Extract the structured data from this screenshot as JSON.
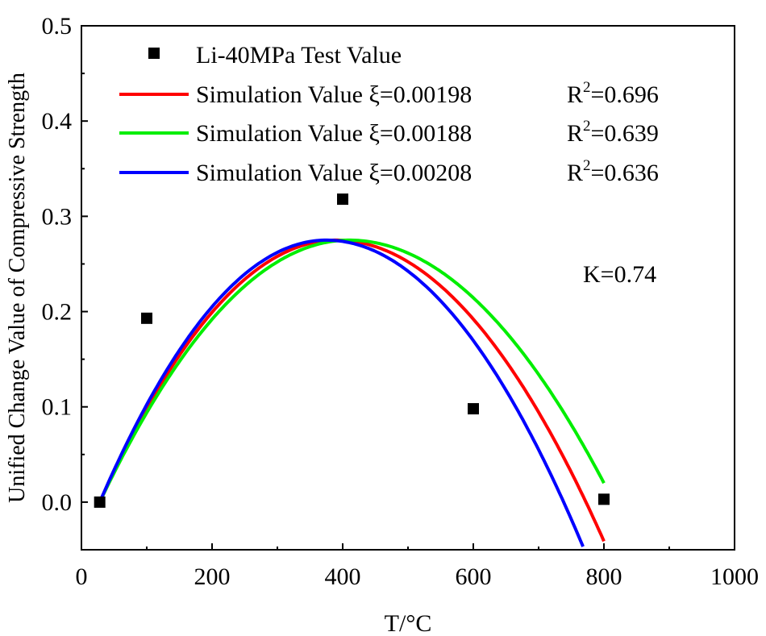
{
  "chart_data": {
    "type": "scatter",
    "title": "",
    "xlabel": "T/°C",
    "ylabel": "Unified Change Value of Compressive Strength",
    "xlim": [
      0,
      1000
    ],
    "ylim": [
      -0.05,
      0.5
    ],
    "xticks": [
      0,
      200,
      400,
      600,
      800,
      1000
    ],
    "xtick_labels": [
      "0",
      "200",
      "400",
      "600",
      "800",
      "1000"
    ],
    "yticks": [
      0.0,
      0.1,
      0.2,
      0.3,
      0.4,
      0.5
    ],
    "ytick_labels": [
      "0.0",
      "0.1",
      "0.2",
      "0.3",
      "0.4",
      "0.5"
    ],
    "grid": false,
    "legend_position": "top",
    "annotation": "K=0.74",
    "test_points": {
      "name": "Li-40MPa Test Value",
      "color": "#000000",
      "x": [
        28,
        100,
        400,
        600,
        800
      ],
      "y": [
        0.0,
        0.193,
        0.318,
        0.098,
        0.003
      ]
    },
    "series": [
      {
        "name": "Simulation Value ξ=0.00198",
        "r2_label": "R",
        "r2_sup": "2",
        "r2_value": "=0.696",
        "color": "#ff0000",
        "peak_x": 390,
        "peak_y": 0.275,
        "x_start": 28,
        "x_end": 800,
        "x": [
          28,
          100,
          200,
          300,
          390,
          500,
          600,
          700,
          800
        ],
        "y": [
          0.0,
          0.107,
          0.201,
          0.259,
          0.275,
          0.245,
          0.179,
          0.078,
          -0.041
        ]
      },
      {
        "name": "Simulation Value ξ=0.00188",
        "r2_label": "R",
        "r2_sup": "2",
        "r2_value": "=0.639",
        "color": "#00ee00",
        "peak_x": 410,
        "peak_y": 0.275,
        "x_start": 28,
        "x_end": 800,
        "x": [
          28,
          100,
          200,
          300,
          410,
          500,
          600,
          700,
          800
        ],
        "y": [
          0.0,
          0.101,
          0.193,
          0.252,
          0.275,
          0.26,
          0.205,
          0.12,
          0.02
        ]
      },
      {
        "name": "Simulation Value ξ=0.00208",
        "r2_label": "R",
        "r2_sup": "2",
        "r2_value": "=0.636",
        "color": "#0000ff",
        "peak_x": 375,
        "peak_y": 0.275,
        "x_start": 28,
        "x_end": 770,
        "x": [
          28,
          100,
          200,
          300,
          375,
          500,
          600,
          700,
          770
        ],
        "y": [
          0.0,
          0.111,
          0.205,
          0.262,
          0.275,
          0.235,
          0.165,
          0.058,
          -0.05
        ]
      }
    ]
  }
}
